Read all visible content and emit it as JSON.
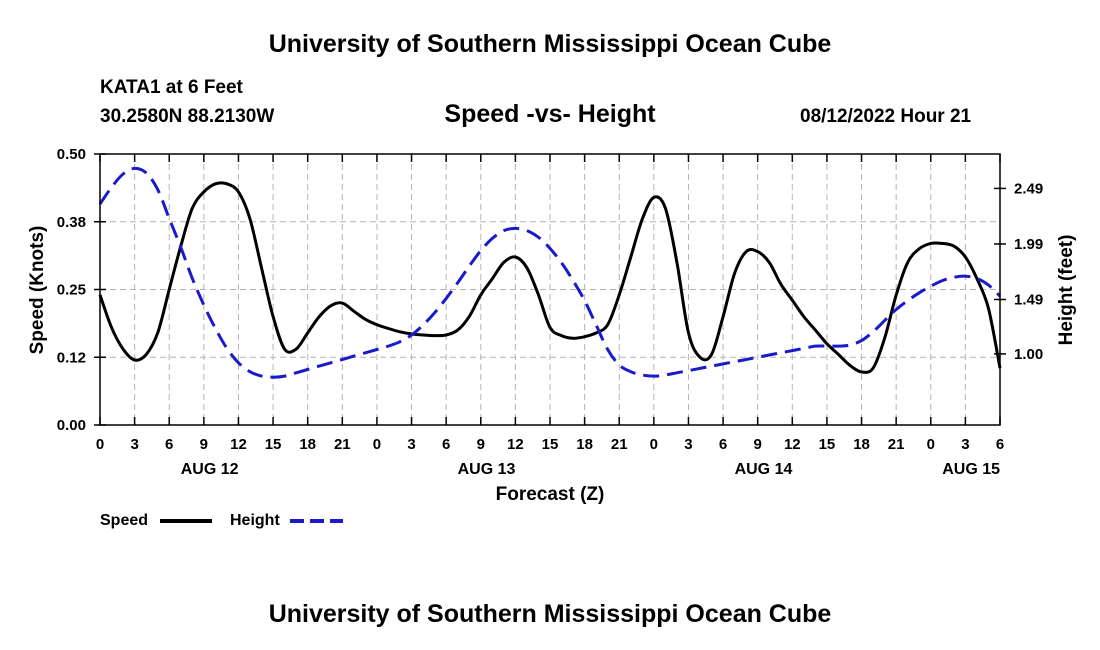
{
  "header": {
    "title": "University of Southern Mississippi Ocean Cube",
    "station": "KATA1 at 6 Feet",
    "coordinates": "30.2580N  88.2130W",
    "chart_title": "Speed -vs- Height",
    "datetime": "08/12/2022 Hour 21"
  },
  "footer": {
    "title": "University of Southern Mississippi Ocean Cube"
  },
  "colors": {
    "speed": "#000000",
    "height": "#1a1acc",
    "grid": "#b4b4b4"
  },
  "chart_data": {
    "type": "line",
    "title": "Speed -vs- Height",
    "xlabel": "Forecast (Z)",
    "ylabel": "Speed (Knots)",
    "y2label": "Height (feet)",
    "xlim": [
      0,
      78
    ],
    "ylim": [
      0,
      0.5
    ],
    "y2lim": [
      0.36,
      2.8
    ],
    "grid": true,
    "x_ticks": [
      0,
      3,
      6,
      9,
      12,
      15,
      18,
      21,
      24,
      27,
      30,
      33,
      36,
      39,
      42,
      45,
      48,
      51,
      54,
      57,
      60,
      63,
      66,
      69,
      72,
      75,
      78
    ],
    "x_tick_labels": [
      "0",
      "3",
      "6",
      "9",
      "12",
      "15",
      "18",
      "21",
      "0",
      "3",
      "6",
      "9",
      "12",
      "15",
      "18",
      "21",
      "0",
      "3",
      "6",
      "9",
      "12",
      "15",
      "18",
      "21",
      "0",
      "3",
      "6"
    ],
    "date_labels": [
      {
        "x": 9.5,
        "label": "AUG 12"
      },
      {
        "x": 33.5,
        "label": "AUG 13"
      },
      {
        "x": 57.5,
        "label": "AUG 14"
      },
      {
        "x": 75.5,
        "label": "AUG 15"
      }
    ],
    "y_ticks": [
      0,
      0.125,
      0.25,
      0.375,
      0.5
    ],
    "y_tick_labels": [
      "0.00",
      "0.12",
      "0.25",
      "0.38",
      "0.50"
    ],
    "y2_ticks": [
      1.0,
      1.49,
      1.99,
      2.49
    ],
    "y2_tick_labels": [
      "1.00",
      "1.49",
      "1.99",
      "2.49"
    ],
    "legend": [
      {
        "name": "Speed",
        "style": "solid"
      },
      {
        "name": "Height",
        "style": "dashed"
      }
    ],
    "legend_position": "bottom-left",
    "series": [
      {
        "name": "Speed",
        "axis": "left",
        "style": "solid",
        "points": [
          [
            0,
            0.24
          ],
          [
            1,
            0.18
          ],
          [
            2,
            0.14
          ],
          [
            3,
            0.12
          ],
          [
            4,
            0.13
          ],
          [
            5,
            0.17
          ],
          [
            6,
            0.25
          ],
          [
            7,
            0.33
          ],
          [
            8,
            0.4
          ],
          [
            9,
            0.43
          ],
          [
            10,
            0.445
          ],
          [
            11,
            0.445
          ],
          [
            12,
            0.43
          ],
          [
            13,
            0.38
          ],
          [
            14,
            0.29
          ],
          [
            15,
            0.2
          ],
          [
            16,
            0.14
          ],
          [
            17,
            0.14
          ],
          [
            18,
            0.17
          ],
          [
            19,
            0.2
          ],
          [
            20,
            0.22
          ],
          [
            21,
            0.225
          ],
          [
            22,
            0.21
          ],
          [
            23,
            0.195
          ],
          [
            24,
            0.185
          ],
          [
            25,
            0.178
          ],
          [
            26,
            0.172
          ],
          [
            27,
            0.168
          ],
          [
            28,
            0.166
          ],
          [
            29,
            0.165
          ],
          [
            30,
            0.166
          ],
          [
            31,
            0.175
          ],
          [
            32,
            0.2
          ],
          [
            33,
            0.24
          ],
          [
            34,
            0.27
          ],
          [
            35,
            0.3
          ],
          [
            36,
            0.31
          ],
          [
            37,
            0.29
          ],
          [
            38,
            0.24
          ],
          [
            39,
            0.18
          ],
          [
            40,
            0.165
          ],
          [
            41,
            0.16
          ],
          [
            42,
            0.163
          ],
          [
            43,
            0.17
          ],
          [
            44,
            0.185
          ],
          [
            45,
            0.24
          ],
          [
            46,
            0.31
          ],
          [
            47,
            0.38
          ],
          [
            48,
            0.42
          ],
          [
            49,
            0.4
          ],
          [
            50,
            0.3
          ],
          [
            51,
            0.17
          ],
          [
            52,
            0.125
          ],
          [
            53,
            0.13
          ],
          [
            54,
            0.2
          ],
          [
            55,
            0.28
          ],
          [
            56,
            0.32
          ],
          [
            57,
            0.32
          ],
          [
            58,
            0.3
          ],
          [
            59,
            0.26
          ],
          [
            60,
            0.23
          ],
          [
            61,
            0.2
          ],
          [
            62,
            0.175
          ],
          [
            63,
            0.15
          ],
          [
            64,
            0.13
          ],
          [
            65,
            0.11
          ],
          [
            66,
            0.098
          ],
          [
            67,
            0.105
          ],
          [
            68,
            0.16
          ],
          [
            69,
            0.24
          ],
          [
            70,
            0.3
          ],
          [
            71,
            0.325
          ],
          [
            72,
            0.335
          ],
          [
            73,
            0.335
          ],
          [
            74,
            0.33
          ],
          [
            75,
            0.31
          ],
          [
            76,
            0.27
          ],
          [
            77,
            0.215
          ],
          [
            78,
            0.105
          ]
        ]
      },
      {
        "name": "Height",
        "axis": "right",
        "style": "dashed",
        "points": [
          [
            0,
            2.35
          ],
          [
            1,
            2.5
          ],
          [
            2,
            2.62
          ],
          [
            3,
            2.67
          ],
          [
            4,
            2.63
          ],
          [
            5,
            2.48
          ],
          [
            6,
            2.22
          ],
          [
            7,
            1.96
          ],
          [
            8,
            1.68
          ],
          [
            9,
            1.44
          ],
          [
            10,
            1.23
          ],
          [
            11,
            1.05
          ],
          [
            12,
            0.92
          ],
          [
            13,
            0.84
          ],
          [
            14,
            0.8
          ],
          [
            15,
            0.79
          ],
          [
            16,
            0.8
          ],
          [
            17,
            0.83
          ],
          [
            18,
            0.86
          ],
          [
            19,
            0.89
          ],
          [
            20,
            0.92
          ],
          [
            21,
            0.95
          ],
          [
            22,
            0.98
          ],
          [
            23,
            1.01
          ],
          [
            24,
            1.04
          ],
          [
            25,
            1.07
          ],
          [
            26,
            1.11
          ],
          [
            27,
            1.17
          ],
          [
            28,
            1.26
          ],
          [
            29,
            1.37
          ],
          [
            30,
            1.5
          ],
          [
            31,
            1.64
          ],
          [
            32,
            1.79
          ],
          [
            33,
            1.93
          ],
          [
            34,
            2.04
          ],
          [
            35,
            2.11
          ],
          [
            36,
            2.13
          ],
          [
            37,
            2.11
          ],
          [
            38,
            2.05
          ],
          [
            39,
            1.95
          ],
          [
            40,
            1.82
          ],
          [
            41,
            1.66
          ],
          [
            42,
            1.48
          ],
          [
            43,
            1.26
          ],
          [
            44,
            1.04
          ],
          [
            45,
            0.9
          ],
          [
            46,
            0.84
          ],
          [
            47,
            0.81
          ],
          [
            48,
            0.8
          ],
          [
            49,
            0.81
          ],
          [
            50,
            0.83
          ],
          [
            51,
            0.85
          ],
          [
            52,
            0.87
          ],
          [
            53,
            0.89
          ],
          [
            54,
            0.91
          ],
          [
            55,
            0.93
          ],
          [
            56,
            0.95
          ],
          [
            57,
            0.97
          ],
          [
            58,
            0.99
          ],
          [
            59,
            1.01
          ],
          [
            60,
            1.03
          ],
          [
            61,
            1.05
          ],
          [
            62,
            1.07
          ],
          [
            63,
            1.07
          ],
          [
            64,
            1.07
          ],
          [
            65,
            1.08
          ],
          [
            66,
            1.12
          ],
          [
            67,
            1.2
          ],
          [
            68,
            1.3
          ],
          [
            69,
            1.4
          ],
          [
            70,
            1.48
          ],
          [
            71,
            1.55
          ],
          [
            72,
            1.61
          ],
          [
            73,
            1.66
          ],
          [
            74,
            1.69
          ],
          [
            75,
            1.7
          ],
          [
            76,
            1.68
          ],
          [
            77,
            1.62
          ],
          [
            78,
            1.52
          ]
        ]
      }
    ]
  }
}
